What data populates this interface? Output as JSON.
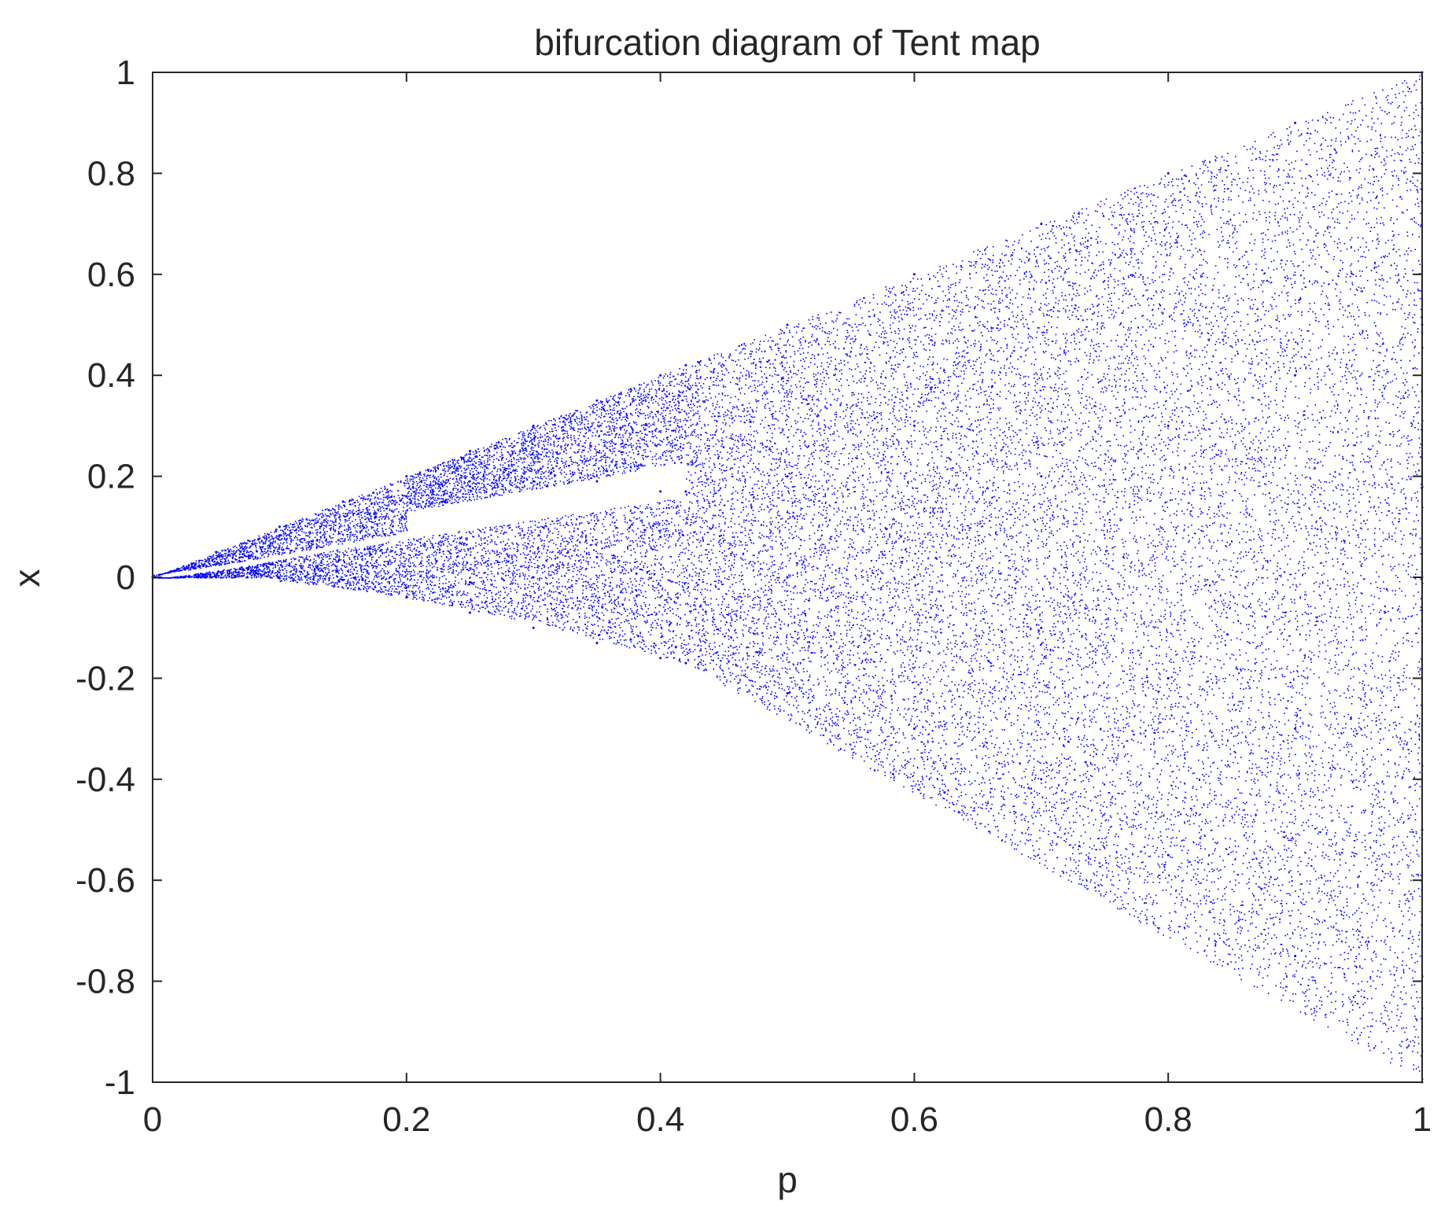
{
  "chart_data": {
    "type": "scatter",
    "title": "bifurcation diagram of Tent map",
    "xlabel": "p",
    "ylabel": "x",
    "xlim": [
      0,
      1
    ],
    "ylim": [
      -1,
      1
    ],
    "xticks": [
      0,
      0.2,
      0.4,
      0.6,
      0.8,
      1
    ],
    "xtick_labels": [
      "0",
      "0.2",
      "0.4",
      "0.6",
      "0.8",
      "1"
    ],
    "yticks": [
      1,
      0.8,
      0.6,
      0.4,
      0.2,
      0,
      -0.2,
      -0.4,
      -0.6,
      -0.8,
      -1
    ],
    "ytick_labels": [
      "1",
      "0.8",
      "0.6",
      "0.4",
      "0.2",
      "0",
      "-0.2",
      "-0.4",
      "-0.6",
      "-0.8",
      "-1"
    ],
    "grid": false,
    "marker_color": "#0000ff",
    "series": [
      {
        "points": [
          [
            0,
            0
          ],
          [
            0.05,
            0.05
          ],
          [
            0.05,
            0
          ],
          [
            0.1,
            0.1
          ],
          [
            0.1,
            -0.002
          ],
          [
            0.15,
            0.15
          ],
          [
            0.15,
            -0.005
          ],
          [
            0.2,
            0.2
          ],
          [
            0.2,
            0.16
          ],
          [
            0.2,
            -0.02
          ],
          [
            0.2,
            -0.04
          ],
          [
            0.25,
            0.25
          ],
          [
            0.25,
            0.18
          ],
          [
            0.25,
            -0.01
          ],
          [
            0.25,
            -0.07
          ],
          [
            0.3,
            0.3
          ],
          [
            0.3,
            0.19
          ],
          [
            0.3,
            0.0
          ],
          [
            0.3,
            -0.1
          ],
          [
            0.35,
            0.35
          ],
          [
            0.35,
            0.19
          ],
          [
            0.35,
            0.04
          ],
          [
            0.35,
            -0.13
          ],
          [
            0.4,
            0.4
          ],
          [
            0.4,
            0.17
          ],
          [
            0.4,
            0.08
          ],
          [
            0.4,
            -0.16
          ],
          [
            0.42,
            0.42
          ],
          [
            0.42,
            0.17
          ],
          [
            0.42,
            -0.17
          ],
          [
            0.5,
            0.5
          ],
          [
            0.5,
            0.2
          ],
          [
            0.5,
            0.0
          ],
          [
            0.5,
            -0.23
          ],
          [
            0.6,
            0.6
          ],
          [
            0.6,
            0.3
          ],
          [
            0.6,
            0.0
          ],
          [
            0.6,
            -0.3
          ],
          [
            0.7,
            0.7
          ],
          [
            0.7,
            0.2
          ],
          [
            0.7,
            -0.1
          ],
          [
            0.7,
            -0.4
          ],
          [
            0.8,
            0.8
          ],
          [
            0.8,
            0.3
          ],
          [
            0.8,
            -0.2
          ],
          [
            0.8,
            -0.55
          ],
          [
            0.9,
            0.9
          ],
          [
            0.9,
            0.4
          ],
          [
            0.9,
            -0.3
          ],
          [
            0.9,
            -0.75
          ],
          [
            1.0,
            1.0
          ],
          [
            1.0,
            0.5
          ],
          [
            1.0,
            0.0
          ],
          [
            1.0,
            -0.5
          ],
          [
            1.0,
            -1.0
          ]
        ]
      }
    ]
  }
}
